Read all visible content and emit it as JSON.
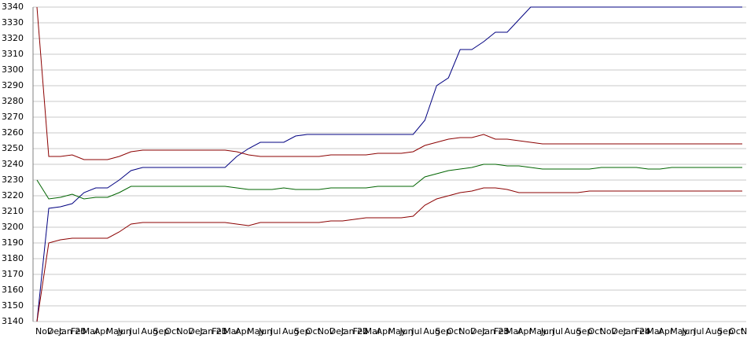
{
  "chart_data": {
    "type": "line",
    "categories": [
      "Nov",
      "Dec",
      "Jan 20",
      "Feb",
      "Mar",
      "Apr",
      "May",
      "Jun",
      "Jul",
      "Aug",
      "Sep",
      "Oct",
      "Nov",
      "Dec",
      "Jan 21",
      "Feb",
      "Mar",
      "Apr",
      "May",
      "Jun",
      "Jul",
      "Aug",
      "Sep",
      "Oct",
      "Nov",
      "Dec",
      "Jan 22",
      "Feb",
      "Mar",
      "Apr",
      "May",
      "Jun",
      "Jul",
      "Aug",
      "Sep",
      "Oct",
      "Nov",
      "Dec",
      "Jan 23",
      "Feb",
      "Mar",
      "Apr",
      "May",
      "Jun",
      "Jul",
      "Aug",
      "Sep",
      "Oct",
      "Nov",
      "Dec",
      "Jan 24",
      "Feb",
      "Mar",
      "Apr",
      "May",
      "Jun",
      "Jul",
      "Aug",
      "Sep",
      "Oct",
      "Nov"
    ],
    "series": [
      {
        "color": "#000080",
        "values": [
          3140,
          3212,
          3213,
          3215,
          3222,
          3225,
          3225,
          3230,
          3236,
          3238,
          3238,
          3238,
          3238,
          3238,
          3238,
          3238,
          3238,
          3245,
          3250,
          3254,
          3254,
          3254,
          3258,
          3259,
          3259,
          3259,
          3259,
          3259,
          3259,
          3259,
          3259,
          3259,
          3259,
          3268,
          3290,
          3295,
          3313,
          3313,
          3318,
          3324,
          3324,
          3332,
          3340,
          3340,
          3340,
          3340,
          3340,
          3340,
          3340,
          3340,
          3340,
          3340,
          3340,
          3340,
          3340,
          3340,
          3340,
          3340,
          3340,
          3340,
          3340
        ]
      },
      {
        "color": "#8b0000",
        "values": [
          3340,
          3245,
          3245,
          3246,
          3243,
          3243,
          3243,
          3245,
          3248,
          3249,
          3249,
          3249,
          3249,
          3249,
          3249,
          3249,
          3249,
          3248,
          3246,
          3245,
          3245,
          3245,
          3245,
          3245,
          3245,
          3246,
          3246,
          3246,
          3246,
          3247,
          3247,
          3247,
          3248,
          3252,
          3254,
          3256,
          3257,
          3257,
          3259,
          3256,
          3256,
          3255,
          3254,
          3253,
          3253,
          3253,
          3253,
          3253,
          3253,
          3253,
          3253,
          3253,
          3253,
          3253,
          3253,
          3253,
          3253,
          3253,
          3253,
          3253,
          3253
        ]
      },
      {
        "color": "#006400",
        "values": [
          3230,
          3218,
          3219,
          3221,
          3218,
          3219,
          3219,
          3222,
          3226,
          3226,
          3226,
          3226,
          3226,
          3226,
          3226,
          3226,
          3226,
          3225,
          3224,
          3224,
          3224,
          3225,
          3224,
          3224,
          3224,
          3225,
          3225,
          3225,
          3225,
          3226,
          3226,
          3226,
          3226,
          3232,
          3234,
          3236,
          3237,
          3238,
          3240,
          3240,
          3239,
          3239,
          3238,
          3237,
          3237,
          3237,
          3237,
          3237,
          3238,
          3238,
          3238,
          3238,
          3237,
          3237,
          3238,
          3238,
          3238,
          3238,
          3238,
          3238,
          3238
        ]
      },
      {
        "color": "#8b0000",
        "values": [
          3140,
          3190,
          3192,
          3193,
          3193,
          3193,
          3193,
          3197,
          3202,
          3203,
          3203,
          3203,
          3203,
          3203,
          3203,
          3203,
          3203,
          3202,
          3201,
          3203,
          3203,
          3203,
          3203,
          3203,
          3203,
          3204,
          3204,
          3205,
          3206,
          3206,
          3206,
          3206,
          3207,
          3214,
          3218,
          3220,
          3222,
          3223,
          3225,
          3225,
          3224,
          3222,
          3222,
          3222,
          3222,
          3222,
          3222,
          3223,
          3223,
          3223,
          3223,
          3223,
          3223,
          3223,
          3223,
          3223,
          3223,
          3223,
          3223,
          3223,
          3223
        ]
      }
    ],
    "ylim": [
      3140,
      3340
    ],
    "yticks": [
      3140,
      3150,
      3160,
      3170,
      3180,
      3190,
      3200,
      3210,
      3220,
      3230,
      3240,
      3250,
      3260,
      3270,
      3280,
      3290,
      3300,
      3310,
      3320,
      3330,
      3340
    ],
    "grid": true
  }
}
